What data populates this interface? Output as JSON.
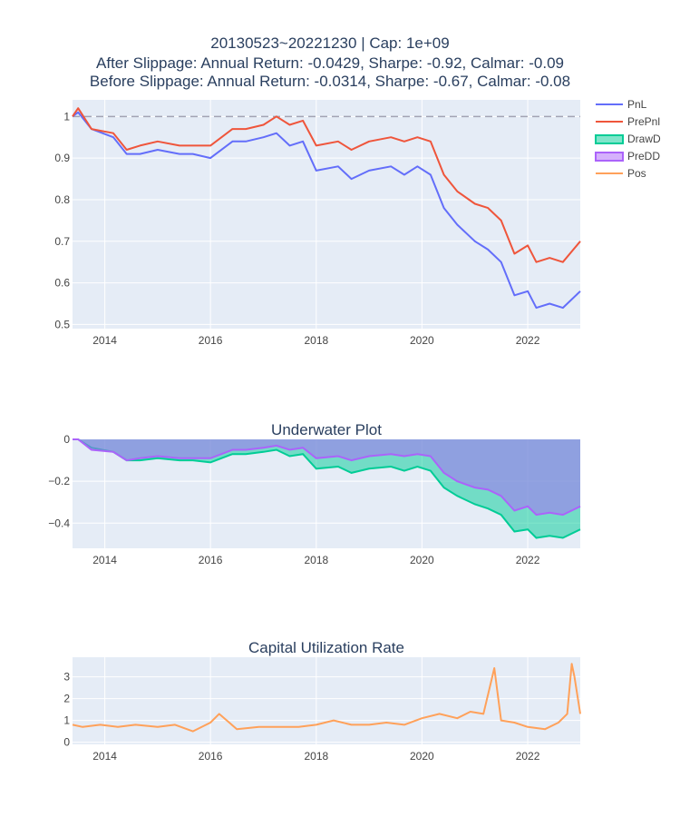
{
  "title_lines": [
    "20130523~20221230 | Cap: 1e+09",
    "After Slippage: Annual Return: -0.0429, Sharpe: -0.92, Calmar: -0.09",
    "Before Slippage: Annual Return: -0.0314, Sharpe: -0.67, Calmar: -0.08"
  ],
  "legend": [
    {
      "name": "PnL",
      "color": "#636efa",
      "kind": "line"
    },
    {
      "name": "PrePnl",
      "color": "#ef553b",
      "kind": "line"
    },
    {
      "name": "DrawD",
      "color": "#00cc96",
      "kind": "area"
    },
    {
      "name": "PreDD",
      "color": "#ab63fa",
      "kind": "area"
    },
    {
      "name": "Pos",
      "color": "#ffa15a",
      "kind": "line"
    }
  ],
  "colors": {
    "plot_bg": "#e5ecf6",
    "grid": "#ffffff",
    "text": "#444444",
    "title": "#2a3f5f",
    "reference": "#a3a3b3"
  },
  "chart_data": [
    {
      "type": "line",
      "name": "pnl-panel",
      "xlim": [
        "2013-05-23",
        "2022-12-30"
      ],
      "ylim": [
        0.49,
        1.04
      ],
      "x_ticks": [
        "2014",
        "2016",
        "2018",
        "2020",
        "2022"
      ],
      "y_ticks": [
        "0.5",
        "0.6",
        "0.7",
        "0.8",
        "0.9",
        "1"
      ],
      "reference_line": 1.0,
      "x": [
        "2013-05-23",
        "2013-07-01",
        "2013-10-01",
        "2014-03-01",
        "2014-06-01",
        "2014-09-01",
        "2015-01-01",
        "2015-06-01",
        "2015-09-01",
        "2016-01-01",
        "2016-06-01",
        "2016-09-01",
        "2017-01-01",
        "2017-04-01",
        "2017-07-01",
        "2017-10-01",
        "2018-01-01",
        "2018-06-01",
        "2018-09-01",
        "2019-01-01",
        "2019-06-01",
        "2019-09-01",
        "2019-12-01",
        "2020-03-01",
        "2020-06-01",
        "2020-09-01",
        "2021-01-01",
        "2021-04-01",
        "2021-07-01",
        "2021-10-01",
        "2022-01-01",
        "2022-03-01",
        "2022-06-01",
        "2022-09-01",
        "2022-12-30"
      ],
      "series": [
        {
          "name": "PnL",
          "values": [
            1.0,
            1.01,
            0.97,
            0.95,
            0.91,
            0.91,
            0.92,
            0.91,
            0.91,
            0.9,
            0.94,
            0.94,
            0.95,
            0.96,
            0.93,
            0.94,
            0.87,
            0.88,
            0.85,
            0.87,
            0.88,
            0.86,
            0.88,
            0.86,
            0.78,
            0.74,
            0.7,
            0.68,
            0.65,
            0.57,
            0.58,
            0.54,
            0.55,
            0.54,
            0.58
          ]
        },
        {
          "name": "PrePnl",
          "values": [
            1.0,
            1.02,
            0.97,
            0.96,
            0.92,
            0.93,
            0.94,
            0.93,
            0.93,
            0.93,
            0.97,
            0.97,
            0.98,
            1.0,
            0.98,
            0.99,
            0.93,
            0.94,
            0.92,
            0.94,
            0.95,
            0.94,
            0.95,
            0.94,
            0.86,
            0.82,
            0.79,
            0.78,
            0.75,
            0.67,
            0.69,
            0.65,
            0.66,
            0.65,
            0.7
          ]
        }
      ]
    },
    {
      "type": "area",
      "title": "Underwater Plot",
      "xlim": [
        "2013-05-23",
        "2022-12-30"
      ],
      "ylim": [
        -0.52,
        0.0
      ],
      "x_ticks": [
        "2014",
        "2016",
        "2018",
        "2020",
        "2022"
      ],
      "y_ticks": [
        "0",
        "−0.2",
        "−0.4"
      ],
      "x": [
        "2013-05-23",
        "2013-07-01",
        "2013-10-01",
        "2014-03-01",
        "2014-06-01",
        "2014-09-01",
        "2015-01-01",
        "2015-06-01",
        "2015-09-01",
        "2016-01-01",
        "2016-06-01",
        "2016-09-01",
        "2017-01-01",
        "2017-04-01",
        "2017-07-01",
        "2017-10-01",
        "2018-01-01",
        "2018-06-01",
        "2018-09-01",
        "2019-01-01",
        "2019-06-01",
        "2019-09-01",
        "2019-12-01",
        "2020-03-01",
        "2020-06-01",
        "2020-09-01",
        "2021-01-01",
        "2021-04-01",
        "2021-07-01",
        "2021-10-01",
        "2022-01-01",
        "2022-03-01",
        "2022-06-01",
        "2022-09-01",
        "2022-12-30"
      ],
      "series": [
        {
          "name": "DrawD",
          "values": [
            0.0,
            0.0,
            -0.04,
            -0.06,
            -0.1,
            -0.1,
            -0.09,
            -0.1,
            -0.1,
            -0.11,
            -0.07,
            -0.07,
            -0.06,
            -0.05,
            -0.08,
            -0.07,
            -0.14,
            -0.13,
            -0.16,
            -0.14,
            -0.13,
            -0.15,
            -0.13,
            -0.15,
            -0.23,
            -0.27,
            -0.31,
            -0.33,
            -0.36,
            -0.44,
            -0.43,
            -0.47,
            -0.46,
            -0.47,
            -0.43
          ]
        },
        {
          "name": "PreDD",
          "values": [
            0.0,
            0.0,
            -0.05,
            -0.06,
            -0.1,
            -0.09,
            -0.08,
            -0.09,
            -0.09,
            -0.09,
            -0.05,
            -0.05,
            -0.04,
            -0.03,
            -0.05,
            -0.04,
            -0.09,
            -0.08,
            -0.1,
            -0.08,
            -0.07,
            -0.08,
            -0.07,
            -0.08,
            -0.16,
            -0.2,
            -0.23,
            -0.24,
            -0.27,
            -0.34,
            -0.32,
            -0.36,
            -0.35,
            -0.36,
            -0.32
          ]
        }
      ]
    },
    {
      "type": "line",
      "title": "Capital Utilization Rate",
      "xlim": [
        "2013-05-23",
        "2022-12-30"
      ],
      "ylim": [
        -0.1,
        3.9
      ],
      "x_ticks": [
        "2014",
        "2016",
        "2018",
        "2020",
        "2022"
      ],
      "y_ticks": [
        "0",
        "1",
        "2",
        "3"
      ],
      "x": [
        "2013-05-23",
        "2013-08-01",
        "2013-12-01",
        "2014-04-01",
        "2014-08-01",
        "2015-01-01",
        "2015-05-01",
        "2015-09-01",
        "2016-01-01",
        "2016-03-01",
        "2016-07-01",
        "2016-12-01",
        "2017-04-01",
        "2017-09-01",
        "2018-01-01",
        "2018-05-01",
        "2018-09-01",
        "2019-01-01",
        "2019-05-01",
        "2019-09-01",
        "2020-01-01",
        "2020-05-01",
        "2020-09-01",
        "2020-12-01",
        "2021-03-01",
        "2021-05-15",
        "2021-07-01",
        "2021-10-01",
        "2022-01-01",
        "2022-05-01",
        "2022-08-01",
        "2022-10-01",
        "2022-11-01",
        "2022-11-20",
        "2022-12-30"
      ],
      "series": [
        {
          "name": "Pos",
          "values": [
            0.8,
            0.7,
            0.8,
            0.7,
            0.8,
            0.7,
            0.8,
            0.5,
            0.9,
            1.3,
            0.6,
            0.7,
            0.7,
            0.7,
            0.8,
            1.0,
            0.8,
            0.8,
            0.9,
            0.8,
            1.1,
            1.3,
            1.1,
            1.4,
            1.3,
            3.4,
            1.0,
            0.9,
            0.7,
            0.6,
            0.9,
            1.3,
            3.6,
            3.0,
            1.3
          ]
        }
      ]
    }
  ]
}
